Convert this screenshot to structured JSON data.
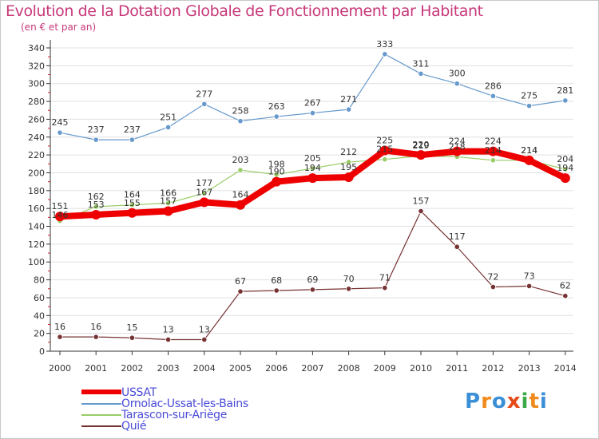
{
  "title": "Evolution de la Dotation Globale de Fonctionnement par Habitant",
  "subtitle": "(en € et par an)",
  "brand": "Proxiti",
  "colors": {
    "title": "#c8397a",
    "axis": "#333333",
    "grid": "#e0e0e0",
    "legend_text": "#4a4ad8"
  },
  "chart_data": {
    "type": "line",
    "title": "Evolution de la Dotation Globale de Fonctionnement par Habitant",
    "subtitle": "(en € et par an)",
    "x": [
      "2000",
      "2001",
      "2002",
      "2003",
      "2004",
      "2005",
      "2006",
      "2007",
      "2008",
      "2009",
      "2010",
      "2011",
      "2012",
      "2013",
      "2014"
    ],
    "ylim": [
      0,
      340
    ],
    "yticks": [
      0,
      20,
      40,
      60,
      80,
      100,
      120,
      140,
      160,
      180,
      200,
      220,
      240,
      260,
      280,
      300,
      320,
      340
    ],
    "grid": true,
    "legend_position": "bottom-left",
    "series": [
      {
        "name": "USSAT",
        "color": "#ee0000",
        "values": [
          151,
          153,
          155,
          157,
          167,
          164,
          190,
          194,
          195,
          225,
          220,
          224,
          224,
          214,
          194
        ]
      },
      {
        "name": "Ornolac-Ussat-les-Bains",
        "color": "#6699cc",
        "values": [
          245,
          237,
          237,
          251,
          277,
          258,
          263,
          267,
          271,
          333,
          311,
          300,
          286,
          275,
          281
        ]
      },
      {
        "name": "Tarascon-sur-Ariège",
        "color": "#99cc66",
        "values": [
          146,
          162,
          164,
          166,
          177,
          203,
          198,
          205,
          212,
          215,
          219,
          218,
          214,
          214,
          204
        ]
      },
      {
        "name": "Quié",
        "color": "#773333",
        "values": [
          16,
          16,
          15,
          13,
          13,
          67,
          68,
          69,
          70,
          71,
          157,
          117,
          72,
          73,
          62
        ]
      }
    ]
  }
}
